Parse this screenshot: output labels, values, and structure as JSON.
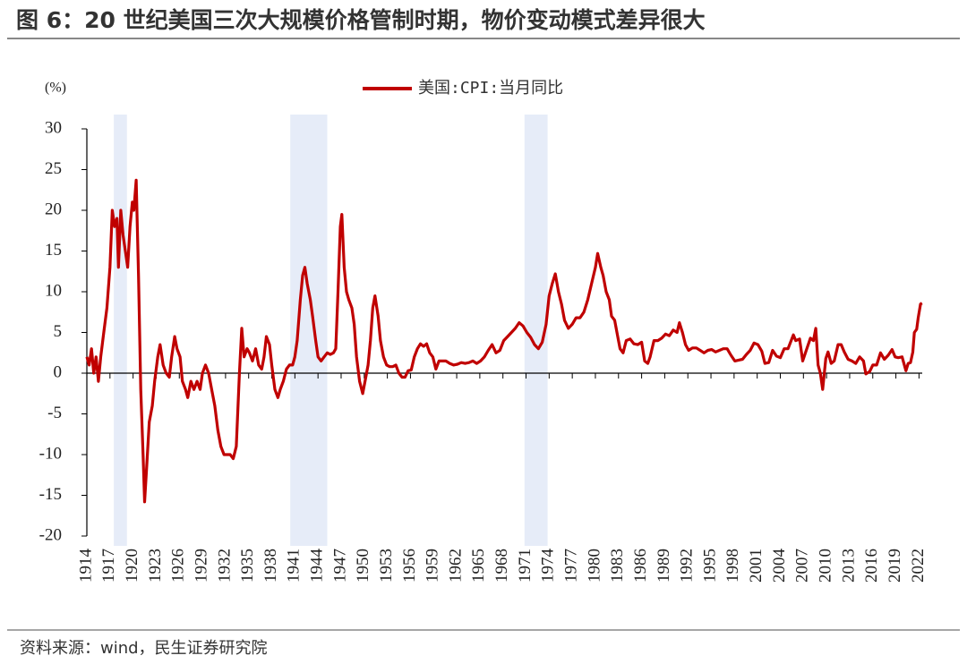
{
  "chart_data": {
    "type": "line",
    "title": "图 6：20 世纪美国三次大规模价格管制时期，物价变动模式差异很大",
    "y_label": "(%)",
    "source": "资料来源：wind，民生证券研究院",
    "xlim": [
      1914,
      2023
    ],
    "ylim": [
      -20,
      30
    ],
    "yticks": [
      -20,
      -15,
      -10,
      -5,
      0,
      5,
      10,
      15,
      20,
      25,
      30
    ],
    "xticks": [
      1914,
      1917,
      1920,
      1923,
      1926,
      1929,
      1932,
      1935,
      1938,
      1941,
      1944,
      1947,
      1950,
      1953,
      1956,
      1959,
      1962,
      1965,
      1968,
      1971,
      1974,
      1977,
      1980,
      1983,
      1986,
      1989,
      1992,
      1995,
      1998,
      2001,
      2004,
      2007,
      2010,
      2013,
      2016,
      2019,
      2022
    ],
    "shaded_periods": [
      [
        1917.5,
        1919.2
      ],
      [
        1940.4,
        1945.2
      ],
      [
        1970.8,
        1973.8
      ]
    ],
    "band_color": "#e6ecf8",
    "x": [
      1914.0,
      1914.3,
      1914.6,
      1914.9,
      1915.2,
      1915.5,
      1915.8,
      1916.2,
      1916.6,
      1917.0,
      1917.3,
      1917.6,
      1917.9,
      1918.1,
      1918.4,
      1918.7,
      1919.0,
      1919.3,
      1919.6,
      1919.9,
      1920.1,
      1920.4,
      1920.7,
      1921.0,
      1921.3,
      1921.5,
      1921.8,
      1922.1,
      1922.5,
      1922.8,
      1923.2,
      1923.5,
      1923.9,
      1924.3,
      1924.7,
      1925.0,
      1925.4,
      1925.7,
      1926.1,
      1926.4,
      1926.8,
      1927.1,
      1927.5,
      1927.9,
      1928.3,
      1928.7,
      1929.0,
      1929.4,
      1929.8,
      1930.2,
      1930.6,
      1931.0,
      1931.4,
      1931.8,
      1932.2,
      1932.6,
      1933.0,
      1933.4,
      1933.8,
      1934.1,
      1934.4,
      1934.8,
      1935.1,
      1935.5,
      1935.9,
      1936.3,
      1936.7,
      1937.0,
      1937.3,
      1937.7,
      1938.0,
      1938.4,
      1938.8,
      1939.1,
      1939.5,
      1939.9,
      1940.3,
      1940.7,
      1941.0,
      1941.3,
      1941.7,
      1942.0,
      1942.3,
      1942.6,
      1943.0,
      1943.3,
      1943.7,
      1944.0,
      1944.4,
      1944.8,
      1945.2,
      1945.6,
      1946.0,
      1946.3,
      1946.6,
      1946.9,
      1947.1,
      1947.4,
      1947.7,
      1948.0,
      1948.4,
      1948.7,
      1949.0,
      1949.4,
      1949.8,
      1950.1,
      1950.5,
      1950.8,
      1951.1,
      1951.4,
      1951.8,
      1952.1,
      1952.5,
      1952.9,
      1953.3,
      1953.7,
      1954.1,
      1954.5,
      1954.9,
      1955.3,
      1955.7,
      1956.1,
      1956.5,
      1956.9,
      1957.3,
      1957.7,
      1958.1,
      1958.5,
      1958.9,
      1959.3,
      1959.7,
      1960.1,
      1960.6,
      1961.1,
      1961.6,
      1962.1,
      1962.6,
      1963.1,
      1963.6,
      1964.1,
      1964.6,
      1965.1,
      1965.6,
      1966.1,
      1966.6,
      1967.1,
      1967.6,
      1968.1,
      1968.6,
      1969.1,
      1969.6,
      1970.1,
      1970.6,
      1971.1,
      1971.6,
      1972.1,
      1972.6,
      1973.1,
      1973.6,
      1974.0,
      1974.4,
      1974.8,
      1975.2,
      1975.6,
      1976.0,
      1976.5,
      1977.0,
      1977.5,
      1978.0,
      1978.5,
      1979.0,
      1979.5,
      1980.0,
      1980.3,
      1980.7,
      1981.0,
      1981.4,
      1981.8,
      1982.1,
      1982.5,
      1982.9,
      1983.2,
      1983.6,
      1984.0,
      1984.5,
      1985.0,
      1985.5,
      1986.0,
      1986.4,
      1986.8,
      1987.1,
      1987.6,
      1988.1,
      1988.6,
      1989.1,
      1989.6,
      1990.1,
      1990.6,
      1990.9,
      1991.3,
      1991.7,
      1992.1,
      1992.6,
      1993.1,
      1993.6,
      1994.1,
      1994.6,
      1995.1,
      1995.6,
      1996.1,
      1996.6,
      1997.1,
      1997.6,
      1998.1,
      1998.6,
      1999.1,
      1999.6,
      2000.1,
      2000.6,
      2001.1,
      2001.6,
      2002.0,
      2002.5,
      2003.0,
      2003.5,
      2004.0,
      2004.5,
      2005.0,
      2005.7,
      2006.0,
      2006.5,
      2006.9,
      2007.3,
      2007.9,
      2008.3,
      2008.6,
      2008.9,
      2009.2,
      2009.5,
      2009.9,
      2010.2,
      2010.6,
      2011.0,
      2011.5,
      2011.9,
      2012.3,
      2012.8,
      2013.3,
      2013.8,
      2014.3,
      2014.8,
      2015.1,
      2015.6,
      2016.0,
      2016.5,
      2017.0,
      2017.5,
      2018.0,
      2018.5,
      2018.9,
      2019.3,
      2019.8,
      2020.3,
      2020.6,
      2020.9,
      2021.2,
      2021.4,
      2021.7,
      2021.9,
      2022.2,
      2022.4
    ],
    "series": [
      {
        "name": "美国:CPI:当月同比",
        "color": "#c00000",
        "values": [
          2,
          1,
          3,
          0,
          2,
          -1,
          2,
          5,
          8,
          13,
          20,
          18,
          19,
          13,
          20,
          17,
          15,
          13,
          18,
          21,
          20,
          23.7,
          12,
          -2,
          -10,
          -15.8,
          -11,
          -6,
          -4,
          -1,
          2,
          3.5,
          1,
          0,
          -0.5,
          2,
          4.5,
          3,
          2,
          -1,
          -2,
          -3,
          -1,
          -2,
          -1,
          -2,
          0,
          1,
          0,
          -2,
          -4,
          -7,
          -9,
          -10,
          -10,
          -10,
          -10.5,
          -9,
          0,
          5.5,
          2,
          3,
          2.5,
          1.5,
          3,
          1,
          0.5,
          2,
          4.5,
          3.5,
          1,
          -2,
          -3,
          -2,
          -1,
          0.5,
          1,
          1,
          2,
          4,
          9,
          12,
          13,
          11,
          9,
          7,
          4,
          2,
          1.5,
          2,
          2.5,
          2.3,
          2.5,
          3,
          10,
          18,
          19.5,
          13,
          10,
          9,
          8,
          6,
          2,
          -1,
          -2.5,
          -1,
          1,
          4,
          8,
          9.5,
          7,
          4,
          2,
          1,
          0.8,
          0.8,
          1,
          0,
          -0.5,
          -0.5,
          0.3,
          0.4,
          2,
          3,
          3.6,
          3.3,
          3.6,
          2.5,
          2,
          0.5,
          1.5,
          1.5,
          1.5,
          1.2,
          1,
          1.1,
          1.3,
          1.2,
          1.3,
          1.5,
          1.2,
          1.5,
          2,
          2.8,
          3.5,
          2.5,
          2.8,
          4,
          4.5,
          5,
          5.5,
          6.2,
          5.8,
          5,
          4.4,
          3.5,
          3,
          3.8,
          6,
          9.5,
          11,
          12.2,
          10,
          8.5,
          6.5,
          5.5,
          6,
          6.8,
          6.8,
          7.5,
          9,
          11,
          13,
          14.7,
          13,
          12,
          10,
          9,
          7,
          6.5,
          4.5,
          3,
          2.5,
          4,
          4.2,
          3.6,
          3.5,
          3.8,
          1.5,
          1.2,
          2,
          4,
          4,
          4.3,
          4.8,
          4.6,
          5.3,
          5,
          6.2,
          5,
          3.5,
          2.8,
          3.1,
          3.1,
          2.8,
          2.5,
          2.8,
          2.9,
          2.6,
          2.8,
          3,
          3,
          2.2,
          1.5,
          1.6,
          1.7,
          2.3,
          2.8,
          3.7,
          3.5,
          2.7,
          1.2,
          1.3,
          2.8,
          2.1,
          1.9,
          3,
          3,
          4.7,
          4,
          4.2,
          1.5,
          2.6,
          4.3,
          4,
          5.5,
          1,
          0,
          -2,
          1.8,
          2.6,
          1.2,
          1.5,
          3.5,
          3.5,
          2.6,
          1.7,
          1.5,
          1.2,
          2,
          1.5,
          -0.1,
          0.2,
          1,
          1,
          2.5,
          1.7,
          2.2,
          2.9,
          2,
          1.9,
          2,
          0.3,
          1.2,
          1.3,
          2.6,
          5,
          5.4,
          6.8,
          8.5,
          8.6
        ]
      }
    ]
  }
}
